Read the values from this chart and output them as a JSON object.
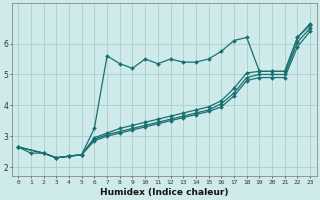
{
  "xlabel": "Humidex (Indice chaleur)",
  "background_color": "#ceeaea",
  "grid_color": "#aacfcf",
  "line_color": "#1a7070",
  "xlim": [
    -0.5,
    23.5
  ],
  "ylim": [
    1.7,
    7.3
  ],
  "yticks": [
    2,
    3,
    4,
    5,
    6
  ],
  "xticks": [
    0,
    1,
    2,
    3,
    4,
    5,
    6,
    7,
    8,
    9,
    10,
    11,
    12,
    13,
    14,
    15,
    16,
    17,
    18,
    19,
    20,
    21,
    22,
    23
  ],
  "line1_x": [
    0,
    1,
    2,
    3,
    4,
    5,
    6,
    7,
    8,
    9,
    10,
    11,
    12,
    13,
    14,
    15,
    16,
    17,
    18,
    19,
    20,
    21,
    22,
    23
  ],
  "line1_y": [
    2.65,
    2.45,
    2.45,
    2.3,
    2.35,
    2.4,
    3.25,
    5.6,
    5.35,
    5.2,
    5.5,
    5.35,
    5.5,
    5.4,
    5.4,
    5.5,
    5.75,
    6.1,
    6.2,
    5.1,
    5.1,
    5.1,
    6.2,
    6.65
  ],
  "line2_x": [
    0,
    2,
    3,
    4,
    5,
    6,
    7,
    8,
    9,
    10,
    11,
    12,
    13,
    14,
    15,
    16,
    17,
    18,
    19,
    20,
    21,
    22,
    23
  ],
  "line2_y": [
    2.65,
    2.45,
    2.3,
    2.35,
    2.4,
    2.95,
    3.1,
    3.25,
    3.35,
    3.45,
    3.55,
    3.65,
    3.75,
    3.85,
    3.95,
    4.15,
    4.55,
    5.05,
    5.1,
    5.1,
    5.1,
    6.2,
    6.6
  ],
  "line3_x": [
    0,
    2,
    3,
    4,
    5,
    6,
    7,
    8,
    9,
    10,
    11,
    12,
    13,
    14,
    15,
    16,
    17,
    18,
    19,
    20,
    21,
    22,
    23
  ],
  "line3_y": [
    2.65,
    2.45,
    2.3,
    2.35,
    2.4,
    2.9,
    3.05,
    3.15,
    3.25,
    3.35,
    3.45,
    3.55,
    3.65,
    3.75,
    3.85,
    4.05,
    4.4,
    4.9,
    5.0,
    5.0,
    5.0,
    6.05,
    6.5
  ],
  "line4_x": [
    0,
    2,
    3,
    4,
    5,
    6,
    7,
    8,
    9,
    10,
    11,
    12,
    13,
    14,
    15,
    16,
    17,
    18,
    19,
    20,
    21,
    22,
    23
  ],
  "line4_y": [
    2.65,
    2.45,
    2.3,
    2.35,
    2.4,
    2.85,
    3.0,
    3.1,
    3.2,
    3.3,
    3.4,
    3.5,
    3.6,
    3.7,
    3.8,
    3.95,
    4.3,
    4.8,
    4.9,
    4.9,
    4.9,
    5.9,
    6.4
  ],
  "markersize": 2.0,
  "linewidth": 0.9
}
